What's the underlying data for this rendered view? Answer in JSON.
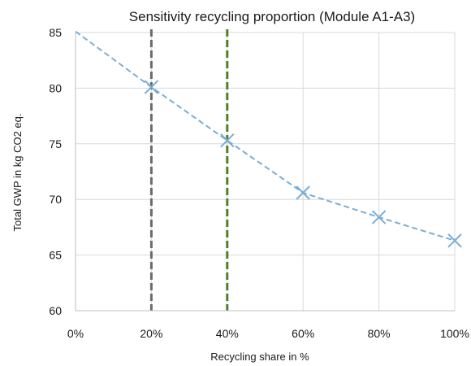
{
  "chart_data": {
    "type": "line",
    "title": "Sensitivity recycling proportion (Module A1-A3)",
    "xlabel": "Recycling share in %",
    "ylabel": "Total GWP in kg CO2 eq.",
    "x_tick_labels": [
      "0%",
      "20%",
      "40%",
      "60%",
      "80%",
      "100%"
    ],
    "y_tick_labels": [
      "60",
      "65",
      "70",
      "75",
      "80",
      "85"
    ],
    "xlim": [
      0,
      100
    ],
    "ylim": [
      60,
      85
    ],
    "x_ticks": [
      0,
      20,
      40,
      60,
      80,
      100
    ],
    "y_ticks": [
      60,
      65,
      70,
      75,
      80,
      85
    ],
    "grid": true,
    "series": [
      {
        "x": [
          0,
          20,
          40,
          60,
          80,
          100
        ],
        "y": [
          85.1,
          80.1,
          75.3,
          70.6,
          68.4,
          66.3
        ],
        "marker_x": [
          20,
          40,
          60,
          80,
          100
        ],
        "color": "#7aaed6",
        "line_style": "dashed",
        "marker": "x"
      }
    ],
    "reference_lines": [
      {
        "x": 20,
        "color": "#6b6b6b",
        "style": "dashed"
      },
      {
        "x": 40,
        "color": "#4f7f2a",
        "style": "dashed"
      }
    ]
  }
}
